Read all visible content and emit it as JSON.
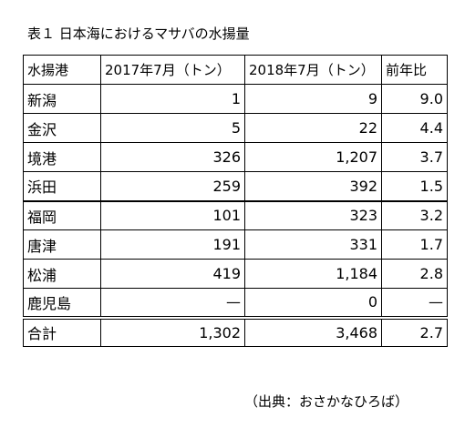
{
  "title": "表１ 日本海におけるマサバの水揚量",
  "table": {
    "header": [
      "水揚港",
      "2017年7月（トン）",
      "2018年7月（トン）",
      "前年比"
    ],
    "rows": [
      [
        "新潟",
        "1",
        "9",
        "9.0"
      ],
      [
        "金沢",
        "5",
        "22",
        "4.4"
      ],
      [
        "境港",
        "326",
        "1,207",
        "3.7"
      ],
      [
        "浜田",
        "259",
        "392",
        "1.5"
      ],
      [
        "福岡",
        "101",
        "323",
        "3.2"
      ],
      [
        "唐津",
        "191",
        "331",
        "1.7"
      ],
      [
        "松浦",
        "419",
        "1,184",
        "2.8"
      ],
      [
        "鹿児島",
        "—",
        "0",
        "—"
      ]
    ],
    "total": [
      "合計",
      "1,302",
      "3,468",
      "2.7"
    ]
  },
  "source": "（出典：おさかなひろば）"
}
